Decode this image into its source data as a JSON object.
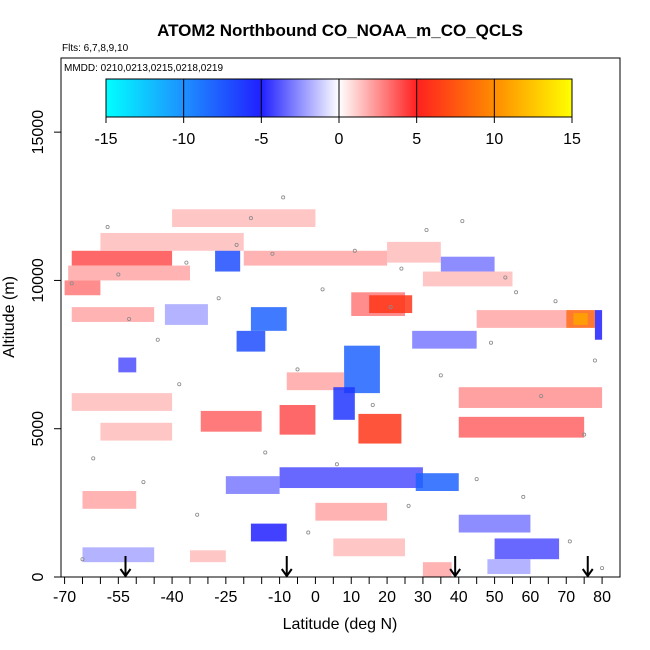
{
  "chart_data": {
    "type": "heatmap",
    "title": "ATOM2 Northbound CO_NOAA_m_CO_QCLS",
    "subtitle_flights": "Flts: 6,7,8,9,10",
    "subtitle_dates": "MMDD: 0210,0213,0215,0218,0219",
    "xlabel": "Latitude (deg N)",
    "ylabel": "Altitude (m)",
    "xlim": [
      -71,
      85
    ],
    "ylim": [
      0,
      17500
    ],
    "x_ticks": [
      -70,
      -55,
      -40,
      -25,
      -10,
      0,
      10,
      20,
      30,
      40,
      50,
      60,
      70,
      80
    ],
    "x_tick_labels": [
      "-70",
      "-55",
      "-40",
      "-25",
      "-10",
      "0",
      "10",
      "20",
      "30",
      "40",
      "50",
      "60",
      "70",
      "80"
    ],
    "x_minor_step": 5,
    "y_ticks": [
      0,
      5000,
      10000,
      15000
    ],
    "y_tick_labels": [
      "0",
      "5000",
      "10000",
      "15000"
    ],
    "colorbar": {
      "range": [
        -15,
        15
      ],
      "ticks": [
        -15,
        -10,
        -5,
        0,
        5,
        10,
        15
      ],
      "tick_labels": [
        "-15",
        "-10",
        "-5",
        "0",
        "5",
        "10",
        "15"
      ],
      "colors": [
        "#00ffff",
        "#1e90ff",
        "#2020ff",
        "#ffffff",
        "#ff2020",
        "#ff8c00",
        "#ffff00"
      ]
    },
    "arrows_latitude": [
      -53,
      -8,
      39,
      76
    ],
    "cells": [
      {
        "lat0": -68,
        "lat1": -40,
        "alt0": 10500,
        "alt1": 11000,
        "v": 4
      },
      {
        "lat0": -69,
        "lat1": -35,
        "alt0": 10000,
        "alt1": 10500,
        "v": 2
      },
      {
        "lat0": -70,
        "lat1": -60,
        "alt0": 9500,
        "alt1": 10000,
        "v": 3
      },
      {
        "lat0": -60,
        "lat1": -20,
        "alt0": 11000,
        "alt1": 11600,
        "v": 1.5
      },
      {
        "lat0": -40,
        "lat1": 0,
        "alt0": 11800,
        "alt1": 12400,
        "v": 1.5
      },
      {
        "lat0": -28,
        "lat1": -21,
        "alt0": 10300,
        "alt1": 11000,
        "v": -7
      },
      {
        "lat0": -20,
        "lat1": 20,
        "alt0": 10500,
        "alt1": 11000,
        "v": 2
      },
      {
        "lat0": 20,
        "lat1": 35,
        "alt0": 10600,
        "alt1": 11300,
        "v": 1.5
      },
      {
        "lat0": 35,
        "lat1": 50,
        "alt0": 10300,
        "alt1": 10800,
        "v": -3
      },
      {
        "lat0": 30,
        "lat1": 55,
        "alt0": 9800,
        "alt1": 10300,
        "v": 1.5
      },
      {
        "lat0": -68,
        "lat1": -45,
        "alt0": 8600,
        "alt1": 9100,
        "v": 2
      },
      {
        "lat0": -42,
        "lat1": -30,
        "alt0": 8500,
        "alt1": 9200,
        "v": -2
      },
      {
        "lat0": -18,
        "lat1": -8,
        "alt0": 8300,
        "alt1": 9100,
        "v": -8
      },
      {
        "lat0": -22,
        "lat1": -14,
        "alt0": 7600,
        "alt1": 8300,
        "v": -7
      },
      {
        "lat0": 10,
        "lat1": 25,
        "alt0": 8800,
        "alt1": 9600,
        "v": 3
      },
      {
        "lat0": 15,
        "lat1": 27,
        "alt0": 8900,
        "alt1": 9500,
        "v": 6
      },
      {
        "lat0": 27,
        "lat1": 45,
        "alt0": 7700,
        "alt1": 8300,
        "v": -3
      },
      {
        "lat0": 45,
        "lat1": 70,
        "alt0": 8400,
        "alt1": 9000,
        "v": 2
      },
      {
        "lat0": 70,
        "lat1": 78,
        "alt0": 8400,
        "alt1": 9000,
        "v": 8
      },
      {
        "lat0": 72,
        "lat1": 76,
        "alt0": 8500,
        "alt1": 8900,
        "v": 11
      },
      {
        "lat0": 78,
        "lat1": 80,
        "alt0": 8000,
        "alt1": 9000,
        "v": -5
      },
      {
        "lat0": 8,
        "lat1": 18,
        "alt0": 6200,
        "alt1": 7800,
        "v": -8
      },
      {
        "lat0": -55,
        "lat1": -50,
        "alt0": 6900,
        "alt1": 7400,
        "v": -4
      },
      {
        "lat0": -8,
        "lat1": 8,
        "alt0": 6300,
        "alt1": 6900,
        "v": 2
      },
      {
        "lat0": 40,
        "lat1": 80,
        "alt0": 5700,
        "alt1": 6400,
        "v": 2.5
      },
      {
        "lat0": -68,
        "lat1": -40,
        "alt0": 5600,
        "alt1": 6200,
        "v": 1.5
      },
      {
        "lat0": 5,
        "lat1": 11,
        "alt0": 5300,
        "alt1": 6400,
        "v": -6
      },
      {
        "lat0": 12,
        "lat1": 24,
        "alt0": 4500,
        "alt1": 5500,
        "v": 6
      },
      {
        "lat0": -10,
        "lat1": 0,
        "alt0": 4800,
        "alt1": 5800,
        "v": 4
      },
      {
        "lat0": -32,
        "lat1": -15,
        "alt0": 4900,
        "alt1": 5600,
        "v": 3.5
      },
      {
        "lat0": 40,
        "lat1": 75,
        "alt0": 4700,
        "alt1": 5400,
        "v": 3.5
      },
      {
        "lat0": -60,
        "lat1": -40,
        "alt0": 4600,
        "alt1": 5200,
        "v": 1.5
      },
      {
        "lat0": -10,
        "lat1": 30,
        "alt0": 3000,
        "alt1": 3700,
        "v": -4
      },
      {
        "lat0": 28,
        "lat1": 40,
        "alt0": 2900,
        "alt1": 3500,
        "v": -8
      },
      {
        "lat0": -25,
        "lat1": -10,
        "alt0": 2800,
        "alt1": 3400,
        "v": -3
      },
      {
        "lat0": -65,
        "lat1": -50,
        "alt0": 2300,
        "alt1": 2900,
        "v": 2
      },
      {
        "lat0": 0,
        "lat1": 20,
        "alt0": 1900,
        "alt1": 2500,
        "v": 2
      },
      {
        "lat0": 40,
        "lat1": 60,
        "alt0": 1500,
        "alt1": 2100,
        "v": -3
      },
      {
        "lat0": -18,
        "lat1": -8,
        "alt0": 1200,
        "alt1": 1800,
        "v": -5
      },
      {
        "lat0": 50,
        "lat1": 68,
        "alt0": 600,
        "alt1": 1300,
        "v": -4
      },
      {
        "lat0": -65,
        "lat1": -45,
        "alt0": 500,
        "alt1": 1000,
        "v": -2
      },
      {
        "lat0": 5,
        "lat1": 25,
        "alt0": 700,
        "alt1": 1300,
        "v": 1.5
      },
      {
        "lat0": -35,
        "lat1": -25,
        "alt0": 500,
        "alt1": 900,
        "v": 1.5
      },
      {
        "lat0": 30,
        "lat1": 38,
        "alt0": 0,
        "alt1": 500,
        "v": 2
      },
      {
        "lat0": 48,
        "lat1": 60,
        "alt0": 100,
        "alt1": 600,
        "v": -2
      }
    ],
    "obs_points": [
      {
        "lat": -65,
        "alt": 600
      },
      {
        "lat": -62,
        "alt": 4000
      },
      {
        "lat": -58,
        "alt": 11800
      },
      {
        "lat": -55,
        "alt": 10200
      },
      {
        "lat": -48,
        "alt": 3200
      },
      {
        "lat": -44,
        "alt": 8000
      },
      {
        "lat": -38,
        "alt": 6500
      },
      {
        "lat": -33,
        "alt": 2100
      },
      {
        "lat": -27,
        "alt": 9400
      },
      {
        "lat": -22,
        "alt": 11200
      },
      {
        "lat": -18,
        "alt": 12100
      },
      {
        "lat": -14,
        "alt": 4200
      },
      {
        "lat": -9,
        "alt": 12800
      },
      {
        "lat": -5,
        "alt": 7000
      },
      {
        "lat": -2,
        "alt": 1500
      },
      {
        "lat": 2,
        "alt": 9700
      },
      {
        "lat": 6,
        "alt": 3800
      },
      {
        "lat": 11,
        "alt": 11000
      },
      {
        "lat": 16,
        "alt": 5800
      },
      {
        "lat": 21,
        "alt": 9100
      },
      {
        "lat": 26,
        "alt": 2400
      },
      {
        "lat": 31,
        "alt": 11700
      },
      {
        "lat": 35,
        "alt": 6800
      },
      {
        "lat": 41,
        "alt": 12000
      },
      {
        "lat": 45,
        "alt": 3300
      },
      {
        "lat": 49,
        "alt": 7900
      },
      {
        "lat": 53,
        "alt": 10100
      },
      {
        "lat": 58,
        "alt": 2700
      },
      {
        "lat": 63,
        "alt": 6100
      },
      {
        "lat": 67,
        "alt": 9300
      },
      {
        "lat": 71,
        "alt": 1200
      },
      {
        "lat": 75,
        "alt": 4800
      },
      {
        "lat": 78,
        "alt": 7300
      },
      {
        "lat": 80,
        "alt": 300
      },
      {
        "lat": -68,
        "alt": 9900
      },
      {
        "lat": -52,
        "alt": 8700
      },
      {
        "lat": -36,
        "alt": 10600
      },
      {
        "lat": -12,
        "alt": 10900
      },
      {
        "lat": 24,
        "alt": 10400
      },
      {
        "lat": 56,
        "alt": 9600
      }
    ]
  }
}
